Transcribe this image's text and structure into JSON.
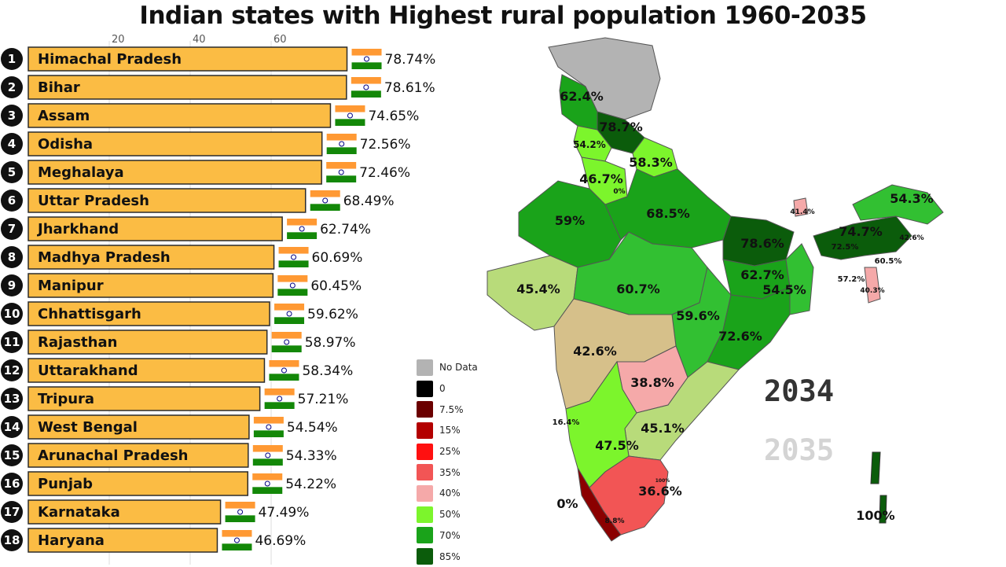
{
  "title": "Indian states with Highest rural population 1960-2035",
  "chart_data": {
    "type": "bar",
    "orientation": "horizontal",
    "title": "Indian states with Highest rural population 1960-2035",
    "x_ticks": [
      20,
      40,
      60
    ],
    "xlim": [
      0,
      80
    ],
    "bar_color": "#fbbc44",
    "categories": [
      "Himachal Pradesh",
      "Bihar",
      "Assam",
      "Odisha",
      "Meghalaya",
      "Uttar Pradesh",
      "Jharkhand",
      "Madhya Pradesh",
      "Manipur",
      "Chhattisgarh",
      "Rajasthan",
      "Uttarakhand",
      "Tripura",
      "West Bengal",
      "Arunachal Pradesh",
      "Punjab",
      "Karnataka",
      "Haryana"
    ],
    "values": [
      78.74,
      78.61,
      74.65,
      72.56,
      72.46,
      68.49,
      62.74,
      60.69,
      60.45,
      59.62,
      58.97,
      58.34,
      57.21,
      54.54,
      54.33,
      54.22,
      47.49,
      46.69
    ],
    "value_labels": [
      "78.74%",
      "78.61%",
      "74.65%",
      "72.56%",
      "72.46%",
      "68.49%",
      "62.74%",
      "60.69%",
      "60.45%",
      "59.62%",
      "58.97%",
      "58.34%",
      "57.21%",
      "54.54%",
      "54.33%",
      "54.22%",
      "47.49%",
      "46.69%"
    ],
    "ranks": [
      "1",
      "2",
      "3",
      "4",
      "5",
      "6",
      "7",
      "8",
      "9",
      "10",
      "11",
      "12",
      "13",
      "14",
      "15",
      "16",
      "17",
      "18"
    ]
  },
  "legend": {
    "items": [
      {
        "label": "No Data",
        "color": "#b3b3b3"
      },
      {
        "label": "0",
        "color": "#000000"
      },
      {
        "label": "7.5%",
        "color": "#6b0000"
      },
      {
        "label": "15%",
        "color": "#b30000"
      },
      {
        "label": "25%",
        "color": "#ff1010"
      },
      {
        "label": "35%",
        "color": "#f25555"
      },
      {
        "label": "40%",
        "color": "#f5a9a9"
      },
      {
        "label": "50%",
        "color": "#7cf52c"
      },
      {
        "label": "70%",
        "color": "#1aa31a"
      },
      {
        "label": "85%",
        "color": "#0b5c0b"
      }
    ]
  },
  "map": {
    "labels": [
      "62.4%",
      "78.7%",
      "54.2%",
      "58.3%",
      "46.7%",
      "0%",
      "68.5%",
      "59%",
      "78.6%",
      "74.7%",
      "54.3%",
      "42.6%",
      "72.5%",
      "60.5%",
      "57.2%",
      "40.3%",
      "41.4%",
      "45.4%",
      "60.7%",
      "62.7%",
      "54.5%",
      "59.6%",
      "72.6%",
      "42.6%",
      "38.8%",
      "45.1%",
      "47.5%",
      "16.4%",
      "36.6%",
      "8.8%",
      "0%",
      "100%",
      "100%"
    ]
  },
  "years": {
    "current": "2034",
    "next": "2035"
  }
}
